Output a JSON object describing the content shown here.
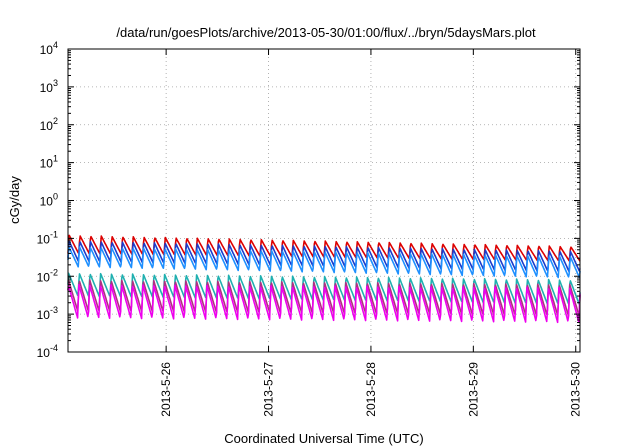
{
  "chart_data": {
    "type": "line",
    "title": "/data/run/goesPlots/archive/2013-05-30/01:00/flux/../bryn/5daysMars.plot",
    "xlabel": "Coordinated Universal Time (UTC)",
    "ylabel": "cGy/day",
    "y_scale": "log",
    "ylim": [
      0.0001,
      10000
    ],
    "xlim": [
      "2013-05-25T01:00",
      "2013-05-30T01:00"
    ],
    "grid": true,
    "y_ticks": [
      {
        "base": "10",
        "exp": "-4"
      },
      {
        "base": "10",
        "exp": "-3"
      },
      {
        "base": "10",
        "exp": "-2"
      },
      {
        "base": "10",
        "exp": "-1"
      },
      {
        "base": "10",
        "exp": "0"
      },
      {
        "base": "10",
        "exp": "1"
      },
      {
        "base": "10",
        "exp": "2"
      },
      {
        "base": "10",
        "exp": "3"
      },
      {
        "base": "10",
        "exp": "4"
      }
    ],
    "x_ticks": [
      {
        "label": "2013-5-26",
        "date": "2013-05-26T00:00"
      },
      {
        "label": "2013-5-27",
        "date": "2013-05-27T00:00"
      },
      {
        "label": "2013-5-28",
        "date": "2013-05-28T00:00"
      },
      {
        "label": "2013-5-29",
        "date": "2013-05-29T00:00"
      },
      {
        "label": "2013-5-30",
        "date": "2013-05-30T00:00"
      }
    ],
    "series": [
      {
        "color": "#dd0000",
        "peak_start": 0.12,
        "peak_end": 0.06,
        "trough_start": 0.04,
        "trough_end": 0.025
      },
      {
        "color": "#1a3ccc",
        "peak_start": 0.085,
        "peak_end": 0.045,
        "trough_start": 0.025,
        "trough_end": 0.013
      },
      {
        "color": "#1e90ff",
        "peak_start": 0.06,
        "peak_end": 0.033,
        "trough_start": 0.018,
        "trough_end": 0.009
      },
      {
        "color": "#20b0b0",
        "peak_start": 0.012,
        "peak_end": 0.008,
        "trough_start": 0.003,
        "trough_end": 0.0018
      },
      {
        "color": "#b03080",
        "peak_start": 0.008,
        "peak_end": 0.006,
        "trough_start": 0.0012,
        "trough_end": 0.0009
      },
      {
        "color": "#ee00ee",
        "peak_start": 0.006,
        "peak_end": 0.005,
        "trough_start": 0.0008,
        "trough_end": 0.0006
      }
    ]
  }
}
